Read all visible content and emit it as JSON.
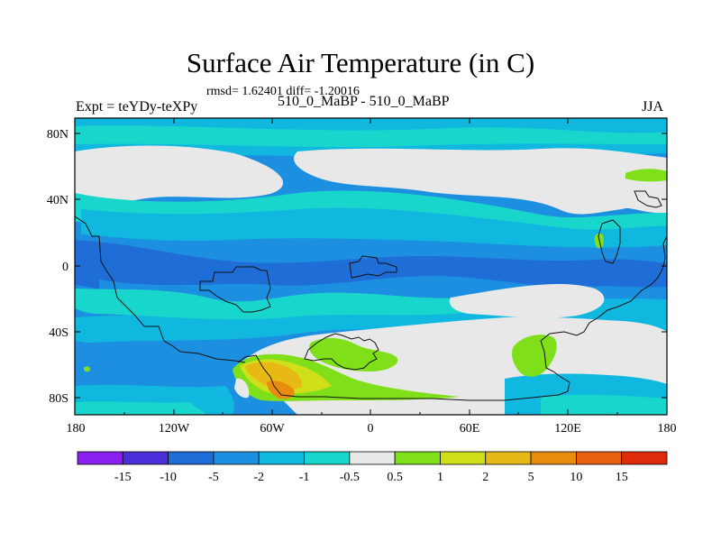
{
  "title": "Surface Air Temperature (in C)",
  "stats": "rmsd= 1.62401  diff= -1.20016",
  "expt": "Expt = teYDy-teXPy",
  "subtitle": "510_0_MaBP - 510_0_MaBP",
  "season": "JJA",
  "x_ticks": [
    "180",
    "120W",
    "60W",
    "0",
    "60E",
    "120E",
    "180"
  ],
  "y_ticks": [
    "80N",
    "40N",
    "0",
    "40S",
    "80S"
  ],
  "colorbar": {
    "labels": [
      "-15",
      "-10",
      "-5",
      "-2",
      "-1",
      "-0.5",
      "0.5",
      "1",
      "2",
      "5",
      "10",
      "15"
    ],
    "colors": [
      "#8a1ff0",
      "#4a2ed8",
      "#1f6ed8",
      "#1d8fe0",
      "#10b8e0",
      "#19d6cc",
      "#e8e8e8",
      "#7fe01a",
      "#cfe01a",
      "#e8b814",
      "#e88c10",
      "#e86010",
      "#e02a0c"
    ]
  },
  "map_colors": {
    "neutral": "#e8e8e8",
    "light_cyan": "#19d6cc",
    "cyan": "#10b8e0",
    "light_blue": "#1d8fe0",
    "blue": "#1f6ed8",
    "green": "#7fe01a",
    "yellow": "#cfe01a",
    "orange": "#e8b814",
    "dark_orange": "#e88c10"
  }
}
